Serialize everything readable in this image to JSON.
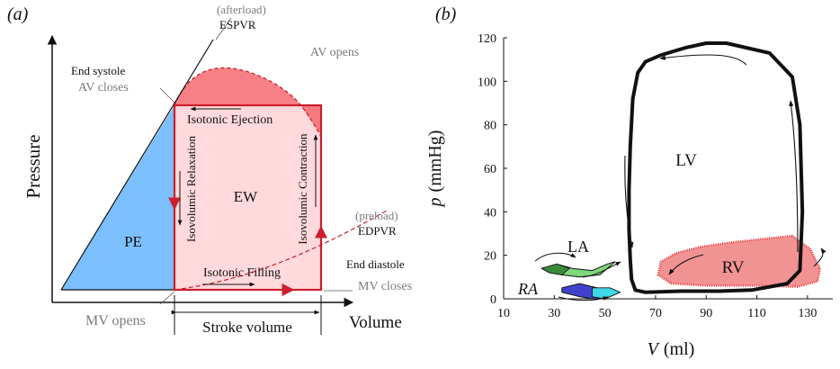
{
  "panel_a": {
    "label": "(a)",
    "y_axis_label": "Pressure",
    "x_axis_label": "Volume",
    "afterload": "(afterload)",
    "espvr": "ESPVR",
    "end_systole": "End systole",
    "av_closes": "AV closes",
    "av_opens": "AV opens",
    "isotonic_ejection": "Isotonic Ejection",
    "isovolumic_relaxation": "Isovolumic Relaxation",
    "isovolumic_contraction": "Isovolumic Contraction",
    "ew": "EW",
    "pe": "PE",
    "preload": "(preload)",
    "edpvr": "EDPVR",
    "isotonic_filling": "Isotonic Filling",
    "end_diastole": "End diastole",
    "mv_closes": "MV closes",
    "mv_opens": "MV opens",
    "stroke_volume": "Stroke volume",
    "colors": {
      "pe_fill": "#7cbfff",
      "ew_fill": "#ffd9dc",
      "pv_loop": "#cc1e2c",
      "ejection_cap": "#f46a70"
    }
  },
  "panel_b": {
    "label": "(b)",
    "chart_data": {
      "type": "line",
      "xlabel_var": "V",
      "xlabel_unit": "(ml)",
      "ylabel_var": "p",
      "ylabel_unit": "(mmHg)",
      "xlim": [
        10,
        140
      ],
      "ylim": [
        0,
        120
      ],
      "x_ticks": [
        10,
        30,
        50,
        70,
        90,
        110,
        130
      ],
      "y_ticks": [
        0,
        20,
        40,
        60,
        80,
        100,
        120
      ],
      "series": [
        {
          "name": "LV",
          "color": "#111111",
          "points": [
            [
              62,
              4
            ],
            [
              66,
              3
            ],
            [
              80,
              3.5
            ],
            [
              95,
              3.5
            ],
            [
              108,
              4
            ],
            [
              122,
              7
            ],
            [
              127,
              13
            ],
            [
              128,
              40
            ],
            [
              127,
              80
            ],
            [
              124,
              102
            ],
            [
              115,
              113
            ],
            [
              98,
              117.5
            ],
            [
              90,
              117.5
            ],
            [
              82,
              115.5
            ],
            [
              72,
              112
            ],
            [
              66,
              109
            ],
            [
              63,
              104
            ],
            [
              61,
              92
            ],
            [
              60,
              70
            ],
            [
              59.5,
              50
            ],
            [
              59.5,
              32
            ],
            [
              60,
              18
            ],
            [
              60.5,
              9
            ],
            [
              62,
              4
            ]
          ]
        },
        {
          "name": "RV",
          "color": "#f08080",
          "points": [
            [
              71,
              11
            ],
            [
              76,
              7
            ],
            [
              90,
              6
            ],
            [
              110,
              6
            ],
            [
              126,
              5.5
            ],
            [
              134,
              8
            ],
            [
              135,
              14
            ],
            [
              131,
              23
            ],
            [
              124,
              29
            ],
            [
              116,
              28
            ],
            [
              100,
              26
            ],
            [
              88,
              24
            ],
            [
              78,
              21
            ],
            [
              72,
              17
            ],
            [
              71,
              11
            ]
          ]
        },
        {
          "name": "LA",
          "color": "#6fd36f",
          "points": [
            [
              25,
              14
            ],
            [
              31,
              16
            ],
            [
              37,
              14
            ],
            [
              45,
              13
            ],
            [
              51,
              16
            ],
            [
              54,
              17
            ],
            [
              48,
              11
            ],
            [
              40,
              10
            ],
            [
              33,
              11
            ],
            [
              28,
              12
            ],
            [
              25,
              14
            ]
          ]
        },
        {
          "name": "RA",
          "color": "#2c2cc8",
          "points": [
            [
              33,
              5
            ],
            [
              40,
              7
            ],
            [
              47,
              5
            ],
            [
              52,
              5
            ],
            [
              56,
              3
            ],
            [
              50,
              0
            ],
            [
              45,
              0
            ],
            [
              40,
              1
            ],
            [
              33,
              3
            ],
            [
              33,
              5
            ]
          ]
        }
      ]
    }
  }
}
